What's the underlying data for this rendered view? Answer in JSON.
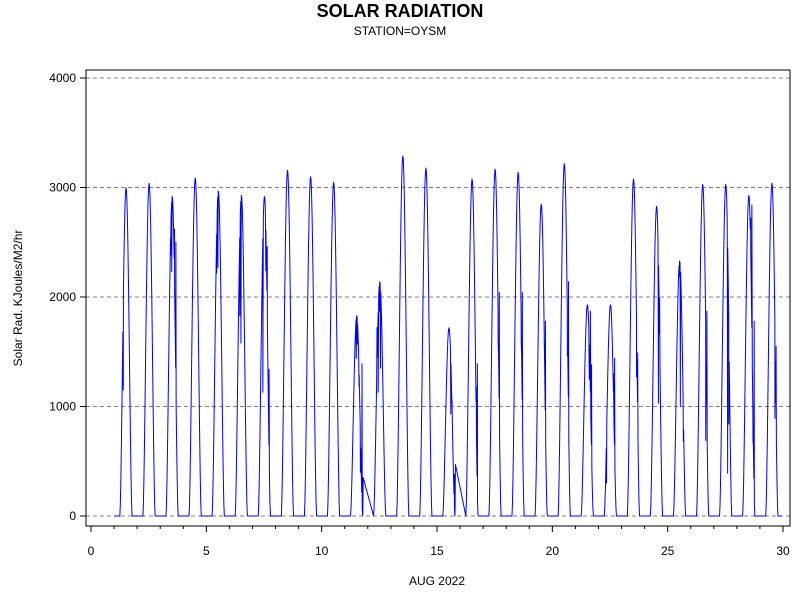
{
  "chart_data": {
    "type": "line",
    "title": "SOLAR RADIATION",
    "subtitle": "STATION=OYSM",
    "xlabel": "AUG 2022",
    "ylabel": "Solar Rad. KJoules/M2/hr",
    "xlim": [
      0,
      30
    ],
    "ylim": [
      0,
      4000
    ],
    "x_ticks": [
      "0",
      "5",
      "10",
      "15",
      "20",
      "25",
      "30"
    ],
    "y_ticks": [
      "0",
      "1000",
      "2000",
      "3000",
      "4000"
    ],
    "grid": "horizontal dashed",
    "line_color": "#0000ff",
    "series": [
      {
        "daily_peaks": [
          {
            "day": 1,
            "peak": 3000,
            "dips": [
              [
                1.4,
                1150
              ]
            ]
          },
          {
            "day": 2,
            "peak": 3040,
            "dips": []
          },
          {
            "day": 3,
            "peak": 2920,
            "dips": [
              [
                3.45,
                2380
              ],
              [
                3.5,
                2230
              ],
              [
                3.62,
                2620
              ],
              [
                3.68,
                2500
              ]
            ]
          },
          {
            "day": 4,
            "peak": 3090,
            "dips": []
          },
          {
            "day": 5,
            "peak": 2970,
            "dips": [
              [
                5.45,
                2220
              ],
              [
                5.5,
                2270
              ]
            ]
          },
          {
            "day": 6,
            "peak": 2930,
            "dips": [
              [
                6.45,
                1830
              ],
              [
                6.5,
                1580
              ]
            ]
          },
          {
            "day": 7,
            "peak": 2920,
            "dips": [
              [
                7.45,
                1130
              ],
              [
                7.58,
                2240
              ],
              [
                7.64,
                2460
              ],
              [
                7.68,
                1210
              ],
              [
                7.72,
                1340
              ]
            ]
          },
          {
            "day": 8,
            "peak": 3160,
            "dips": []
          },
          {
            "day": 9,
            "peak": 3100,
            "dips": []
          },
          {
            "day": 10,
            "peak": 3050,
            "dips": []
          },
          {
            "day": 11,
            "peak": 1830,
            "dips": [
              [
                11.5,
                1440
              ],
              [
                11.55,
                1570
              ],
              [
                11.62,
                1180
              ],
              [
                11.68,
                400
              ],
              [
                11.75,
                1390
              ],
              [
                11.8,
                350
              ]
            ]
          },
          {
            "day": 12,
            "peak": 2140,
            "dips": [
              [
                12.4,
                1720
              ],
              [
                12.45,
                1130
              ],
              [
                12.5,
                1870
              ],
              [
                12.55,
                1350
              ]
            ]
          },
          {
            "day": 13,
            "peak": 3290,
            "dips": []
          },
          {
            "day": 14,
            "peak": 3180,
            "dips": []
          },
          {
            "day": 15,
            "peak": 1720,
            "dips": [
              [
                15.6,
                930
              ],
              [
                15.65,
                1060
              ],
              [
                15.75,
                380
              ],
              [
                15.8,
                470
              ]
            ]
          },
          {
            "day": 16,
            "peak": 3080,
            "dips": [
              [
                16.7,
                1180
              ],
              [
                16.75,
                1390
              ]
            ]
          },
          {
            "day": 17,
            "peak": 3170,
            "dips": [
              [
                17.65,
                1590
              ],
              [
                17.7,
                2040
              ]
            ]
          },
          {
            "day": 18,
            "peak": 3140,
            "dips": [
              [
                18.65,
                1600
              ],
              [
                18.7,
                2040
              ]
            ]
          },
          {
            "day": 19,
            "peak": 2850,
            "dips": [
              [
                19.65,
                1610
              ],
              [
                19.7,
                1780
              ]
            ]
          },
          {
            "day": 20,
            "peak": 3220,
            "dips": [
              [
                20.65,
                1460
              ],
              [
                20.7,
                2140
              ]
            ]
          },
          {
            "day": 21,
            "peak": 1930,
            "dips": [
              [
                21.6,
                1250
              ],
              [
                21.65,
                1870
              ],
              [
                21.7,
                1380
              ]
            ]
          },
          {
            "day": 22,
            "peak": 1930,
            "dips": [
              [
                22.3,
                240
              ],
              [
                22.35,
                300
              ],
              [
                22.65,
                1300
              ],
              [
                22.7,
                1440
              ]
            ]
          },
          {
            "day": 23,
            "peak": 3080,
            "dips": [
              [
                23.65,
                1270
              ],
              [
                23.7,
                1490
              ]
            ]
          },
          {
            "day": 24,
            "peak": 2830,
            "dips": [
              [
                24.6,
                1030
              ],
              [
                24.65,
                1990
              ]
            ]
          },
          {
            "day": 25,
            "peak": 2330,
            "dips": [
              [
                25.5,
                2190
              ],
              [
                25.55,
                1000
              ],
              [
                25.68,
                680
              ]
            ]
          },
          {
            "day": 26,
            "peak": 3030,
            "dips": [
              [
                26.65,
                690
              ],
              [
                26.7,
                1870
              ]
            ]
          },
          {
            "day": 27,
            "peak": 3030,
            "dips": [
              [
                27.6,
                390
              ],
              [
                27.65,
                840
              ]
            ]
          },
          {
            "day": 28,
            "peak": 2930,
            "dips": [
              [
                28.6,
                2720
              ],
              [
                28.65,
                2840
              ],
              [
                28.7,
                680
              ],
              [
                28.75,
                1780
              ]
            ]
          },
          {
            "day": 29,
            "peak": 3040,
            "dips": [
              [
                29.65,
                890
              ],
              [
                29.7,
                1550
              ]
            ]
          }
        ]
      }
    ]
  }
}
